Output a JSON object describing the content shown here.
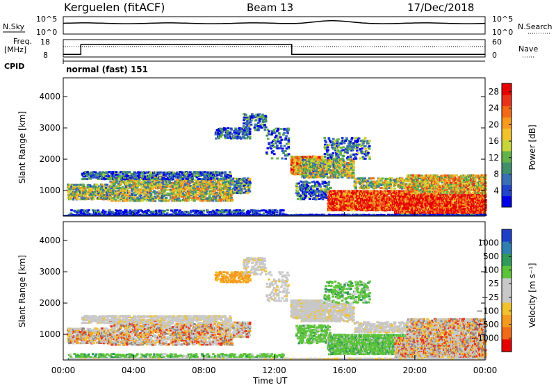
{
  "header": {
    "station": "Kerguelen (fitACF)",
    "beam": "Beam 13",
    "date": "17/Dec/2018"
  },
  "noise_panel": {
    "left_label": "N.Sky",
    "right_label": "N.Search",
    "left_ticks": [
      "10^5",
      "10^0"
    ],
    "right_ticks": [
      "10^5",
      "10^0"
    ]
  },
  "freq_panel": {
    "left_label_line1": "Freq.",
    "left_label_line2": "[MHz]",
    "right_label": "Nave",
    "left_ticks": [
      "18",
      "8"
    ],
    "right_ticks": [
      "60",
      "0"
    ],
    "step_times_h": [
      0,
      1,
      13,
      24
    ],
    "step_levels": [
      0.15,
      0.72,
      0.15
    ]
  },
  "cpid": {
    "label": "CPID",
    "mode": "normal (fast) 151"
  },
  "chart_data": [
    {
      "type": "heatmap",
      "name": "power",
      "ylabel": "Slant Range [km]",
      "xlabel": "",
      "xlim": [
        0,
        24
      ],
      "ylim": [
        180,
        4600
      ],
      "y_ticks": [
        "1000",
        "2000",
        "3000",
        "4000"
      ],
      "y_tick_values": [
        1000,
        2000,
        3000,
        4000
      ],
      "colorbar": {
        "label": "Power [dB]",
        "ticks": [
          "4",
          "8",
          "12",
          "16",
          "20",
          "24",
          "28"
        ],
        "tick_values": [
          4,
          8,
          12,
          16,
          20,
          24,
          28
        ],
        "range": [
          0,
          30
        ],
        "colors": [
          "#0000e6",
          "#2244cc",
          "#3a6fb5",
          "#3f8f6a",
          "#63b34a",
          "#c8d43a",
          "#f2c22e",
          "#f59a1f",
          "#f06a18",
          "#e8321a",
          "#e60000"
        ]
      }
    },
    {
      "type": "heatmap",
      "name": "velocity",
      "ylabel": "Slant Range [km]",
      "xlabel": "Time UT",
      "xlim": [
        0,
        24
      ],
      "ylim": [
        180,
        4600
      ],
      "x_ticks": [
        "00:00",
        "04:00",
        "08:00",
        "12:00",
        "16:00",
        "20:00",
        "00:00"
      ],
      "x_tick_values": [
        0,
        4,
        8,
        12,
        16,
        20,
        24
      ],
      "y_ticks": [
        "1000",
        "2000",
        "3000",
        "4000"
      ],
      "y_tick_values": [
        1000,
        2000,
        3000,
        4000
      ],
      "colorbar": {
        "label": "Velocity [m s⁻¹]",
        "ticks": [
          "1000",
          "500",
          "100",
          "25",
          "−25",
          "−100",
          "−500",
          "−1000"
        ],
        "colors": [
          "#1f3fc8",
          "#2f7fb0",
          "#2f9a5a",
          "#5cc43a",
          "#c8c8c8",
          "#c8c8c8",
          "#f2c22e",
          "#f59a1f",
          "#f06a18",
          "#e60000"
        ]
      }
    }
  ]
}
